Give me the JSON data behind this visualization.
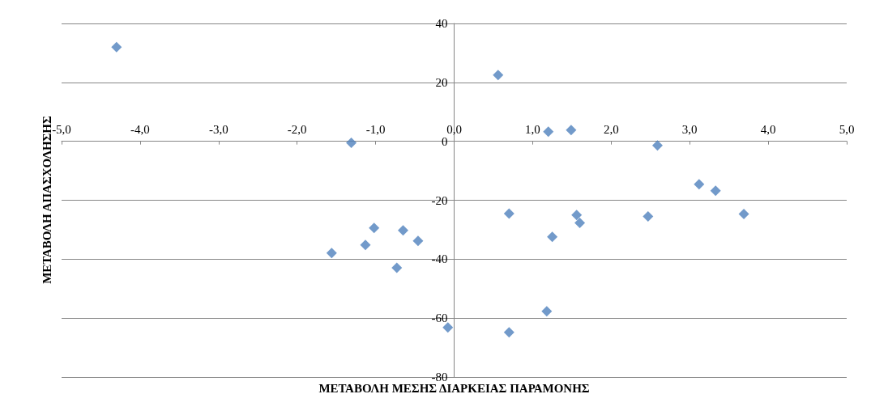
{
  "chart_data": {
    "type": "scatter",
    "xlabel": "ΜΕΤΑΒΟΛΗ ΜΕΣΗΣ ΔΙΑΡΚΕΙΑΣ ΠΑΡΑΜΟΝΗΣ",
    "ylabel": "ΜΕΤΑΒΟΛΗ ΑΠΑΣΧΟΛΗΣΗΣ",
    "x": [
      -4.3,
      0.56,
      -1.31,
      1.2,
      1.49,
      2.59,
      3.12,
      3.33,
      3.69,
      0.7,
      1.56,
      1.6,
      2.47,
      1.25,
      -1.02,
      -0.65,
      -0.46,
      -1.13,
      -1.56,
      -0.73,
      1.18,
      -0.08,
      0.7
    ],
    "series": [
      {
        "color": "#4f81bd",
        "values": [
          32,
          22.5,
          -0.5,
          3.3,
          3.8,
          -1.4,
          -14.6,
          -16.8,
          -24.7,
          -24.5,
          -25,
          -27.7,
          -25.5,
          -32.4,
          -29.4,
          -30.2,
          -33.8,
          -35.2,
          -37.9,
          -42.9,
          -57.7,
          -63.2,
          -64.8
        ]
      }
    ],
    "xlim": [
      -5,
      5
    ],
    "xticks": [
      {
        "value": -5,
        "label": "-5,0"
      },
      {
        "value": -4,
        "label": "-4,0"
      },
      {
        "value": -3,
        "label": "-3,0"
      },
      {
        "value": -2,
        "label": "-2,0"
      },
      {
        "value": -1,
        "label": "-1,0"
      },
      {
        "value": 0,
        "label": "0,0"
      },
      {
        "value": 1,
        "label": "1,0"
      },
      {
        "value": 2,
        "label": "2,0"
      },
      {
        "value": 3,
        "label": "3,0"
      },
      {
        "value": 4,
        "label": "4,0"
      },
      {
        "value": 5,
        "label": "5,0"
      }
    ],
    "ylim": [
      -80,
      40
    ],
    "yticks": [
      -80,
      -60,
      -40,
      -20,
      0,
      20,
      40
    ],
    "grid": "y",
    "marker": "diamond"
  }
}
